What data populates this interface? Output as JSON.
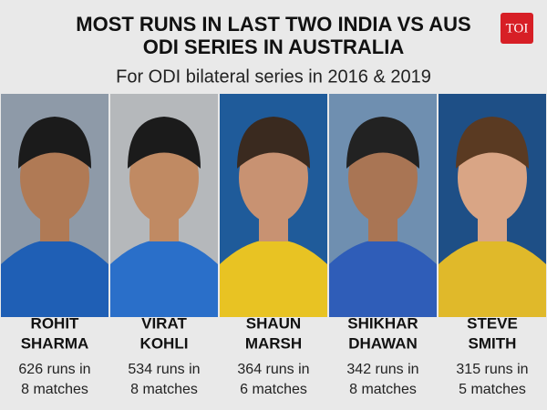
{
  "header": {
    "title_lines": [
      "MOST RUNS IN LAST TWO INDIA VS AUS",
      "ODI SERIES IN AUSTRALIA"
    ],
    "subtitle": "For ODI bilateral series in 2016 & 2019",
    "logo": "TOI"
  },
  "players": [
    {
      "first_name": "ROHIT",
      "last_name": "SHARMA",
      "runs_line": "626 runs in",
      "matches_line": "8 matches"
    },
    {
      "first_name": "VIRAT",
      "last_name": "KOHLI",
      "runs_line": "534 runs in",
      "matches_line": "8 matches"
    },
    {
      "first_name": "SHAUN",
      "last_name": "MARSH",
      "runs_line": "364 runs in",
      "matches_line": "6 matches"
    },
    {
      "first_name": "SHIKHAR",
      "last_name": "DHAWAN",
      "runs_line": "342 runs in",
      "matches_line": "8 matches"
    },
    {
      "first_name": "STEVE",
      "last_name": "SMITH",
      "runs_line": "315 runs in",
      "matches_line": "5 matches"
    }
  ]
}
